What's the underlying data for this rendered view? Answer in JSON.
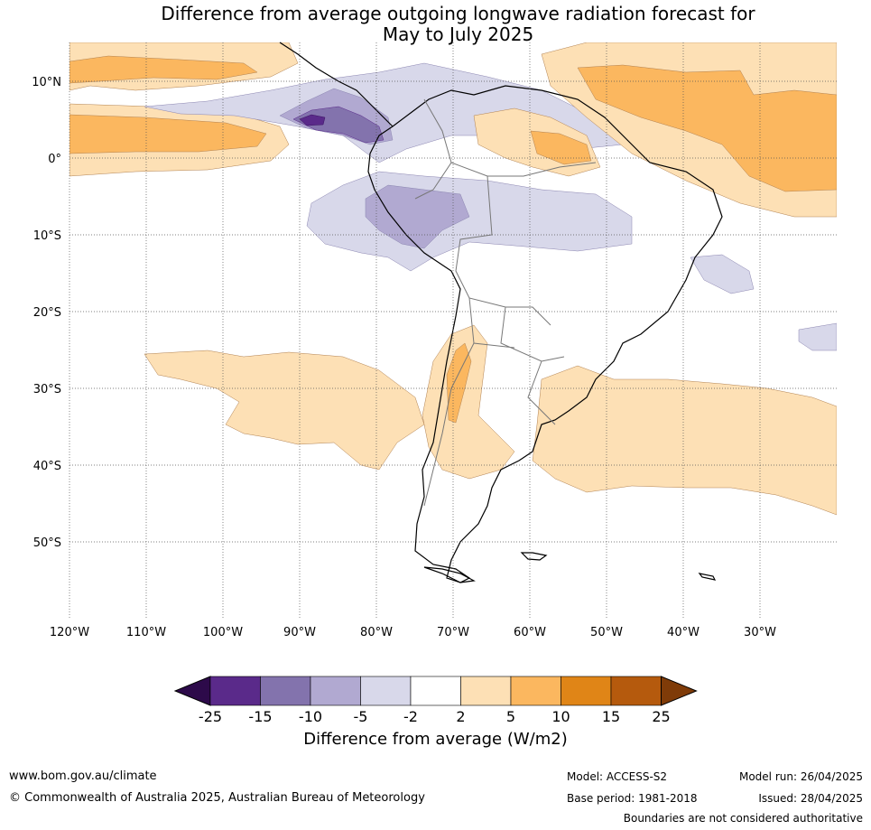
{
  "title": {
    "line1": "Difference from average outgoing longwave radiation forecast for",
    "line2": "May to July 2025"
  },
  "axes": {
    "longitude_labels": [
      "120°W",
      "110°W",
      "100°W",
      "90°W",
      "80°W",
      "70°W",
      "60°W",
      "50°W",
      "40°W",
      "30°W"
    ],
    "latitude_labels": [
      "10°N",
      "0°",
      "10°S",
      "20°S",
      "30°S",
      "40°S",
      "50°S"
    ]
  },
  "colorbar": {
    "labels": [
      "-25",
      "-15",
      "-10",
      "-5",
      "-2",
      "2",
      "5",
      "10",
      "15",
      "25"
    ],
    "colors": [
      "#2d0a4a",
      "#5a2a8a",
      "#8373ad",
      "#b1a9d1",
      "#d8d8ea",
      "#ffffff",
      "#fde0b5",
      "#fbb75f",
      "#e08517",
      "#b55a0d",
      "#7f3b08"
    ],
    "title": "Difference from average (W/m2)"
  },
  "footer": {
    "website": "www.bom.gov.au/climate",
    "copyright": "© Commonwealth of Australia 2025, Australian Bureau of Meteorology",
    "model": "Model: ACCESS-S2",
    "base_period": "Base period: 1981-2018",
    "model_run": "Model run: 26/04/2025",
    "issued": "Issued: 28/04/2025",
    "disclaimer": "Boundaries are not considered authoritative"
  },
  "map": {
    "region": "South America",
    "lon_range": [
      -120,
      -20
    ],
    "lat_range": [
      -60,
      15
    ],
    "gridlines": true
  }
}
